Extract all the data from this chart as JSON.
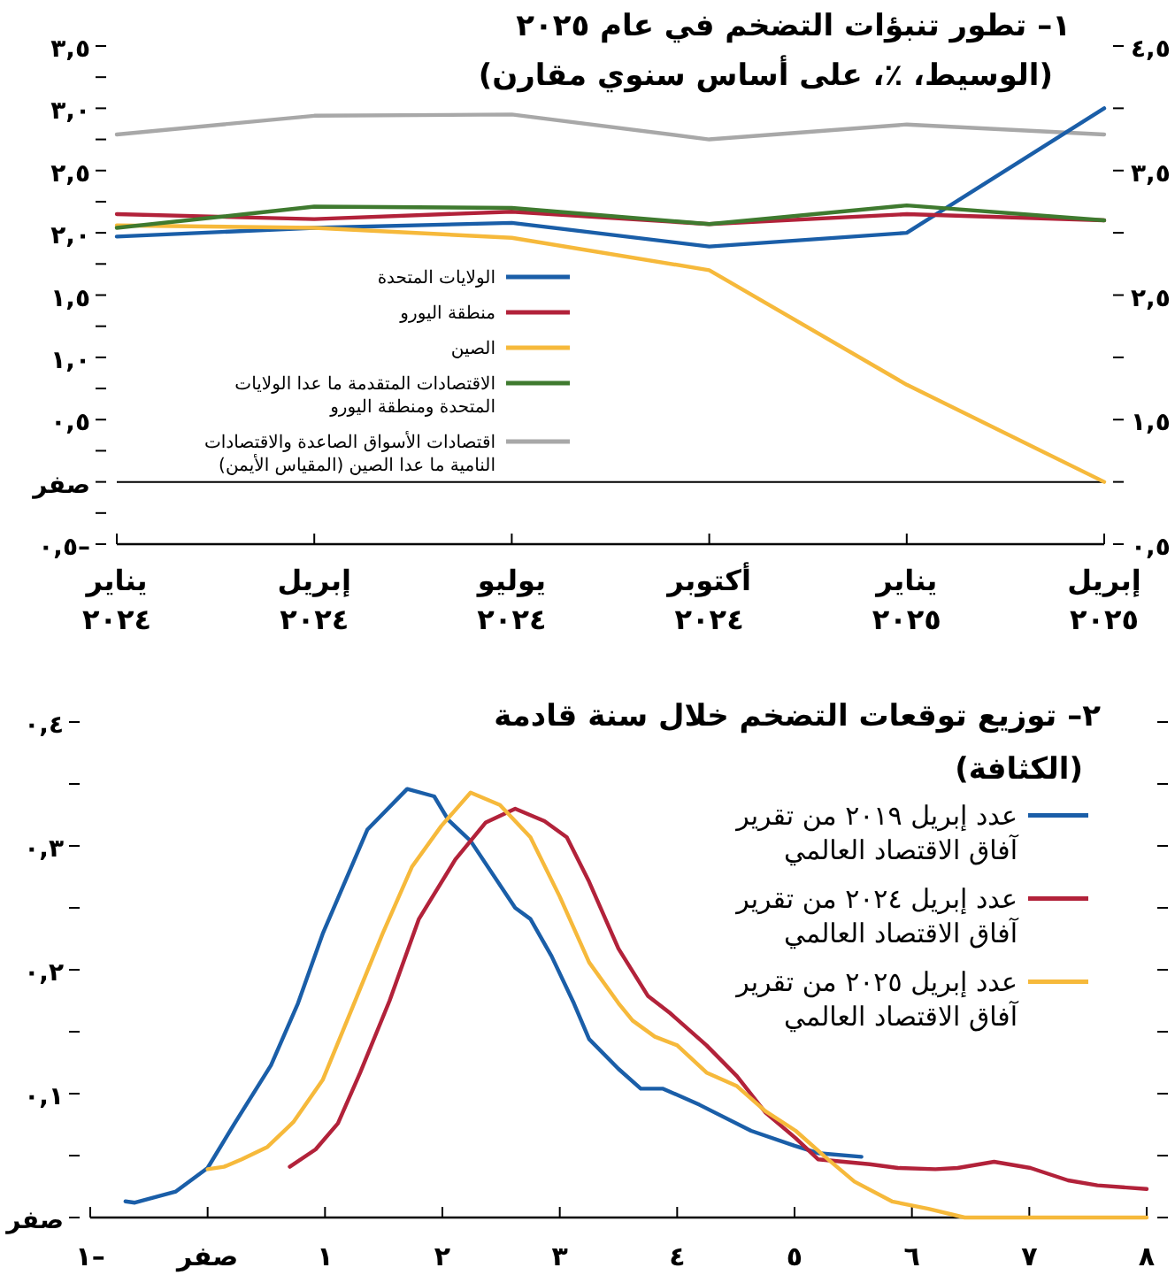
{
  "chart_data": [
    {
      "type": "line",
      "title": "١– تطور تنبؤات التضخم في عام ٢٠٢٥",
      "subtitle": "(الوسيط، ٪، على أساس سنوي مقارن)",
      "categories": [
        "يناير\n٢٠٢٤",
        "إبريل\n٢٠٢٤",
        "يوليو\n٢٠٢٤",
        "أكتوبر\n٢٠٢٤",
        "يناير\n٢٠٢٥",
        "إبريل\n٢٠٢٥"
      ],
      "series": [
        {
          "name": "الولايات المتحدة",
          "color": "#1a5ea8",
          "values": [
            1.97,
            2.04,
            2.08,
            1.89,
            2.0,
            3.0
          ]
        },
        {
          "name": "منطقة اليورو",
          "color": "#b2223a",
          "values": [
            2.15,
            2.11,
            2.17,
            2.07,
            2.15,
            2.1
          ]
        },
        {
          "name": "الصين",
          "color": "#f6b93b",
          "values": [
            2.06,
            2.04,
            1.96,
            1.7,
            0.78,
            0.0
          ]
        },
        {
          "name": "الاقتصادات المتقدمة ما عدا الولايات المتحدة ومنطقة اليورو",
          "color": "#3f7a2f",
          "values": [
            2.04,
            2.21,
            2.2,
            2.07,
            2.22,
            2.1
          ]
        },
        {
          "name": "اقتصادات الأسواق الصاعدة والاقتصادات النامية ما عدا الصين (المقياس الأيمن)",
          "color": "#a8a8a8",
          "axis": "y2",
          "values": [
            3.79,
            3.94,
            3.95,
            3.75,
            3.87,
            3.79
          ]
        }
      ],
      "ylim": [
        -0.5,
        3.5
      ],
      "yticks": [
        {
          "value": -0.5,
          "label": "٠,٥–"
        },
        {
          "value": -0.25,
          "label": null
        },
        {
          "value": 0,
          "label": "صفر"
        },
        {
          "value": 0.25,
          "label": null
        },
        {
          "value": 0.5,
          "label": "٠,٥"
        },
        {
          "value": 0.75,
          "label": null
        },
        {
          "value": 1.0,
          "label": "١,٠"
        },
        {
          "value": 1.25,
          "label": null
        },
        {
          "value": 1.5,
          "label": "١,٥"
        },
        {
          "value": 1.75,
          "label": null
        },
        {
          "value": 2.0,
          "label": "٢,٠"
        },
        {
          "value": 2.25,
          "label": null
        },
        {
          "value": 2.5,
          "label": "٢,٥"
        },
        {
          "value": 2.75,
          "label": null
        },
        {
          "value": 3.0,
          "label": "٣,٠"
        },
        {
          "value": 3.25,
          "label": null
        },
        {
          "value": 3.5,
          "label": "٣,٥"
        }
      ],
      "y2lim": [
        0.5,
        4.5
      ],
      "y2ticks": [
        {
          "value": 0.5,
          "label": "٠,٥"
        },
        {
          "value": 1.0,
          "label": null
        },
        {
          "value": 1.5,
          "label": "١,٥"
        },
        {
          "value": 2.0,
          "label": null
        },
        {
          "value": 2.5,
          "label": "٢,٥"
        },
        {
          "value": 3.0,
          "label": null
        },
        {
          "value": 3.5,
          "label": "٣,٥"
        },
        {
          "value": 4.0,
          "label": null
        },
        {
          "value": 4.5,
          "label": "٤,٥"
        }
      ],
      "ref_lines": [
        {
          "axis": "y",
          "value": 0,
          "color": "#000000"
        }
      ],
      "legend": "left"
    },
    {
      "type": "line",
      "title": "٢– توزيع توقعات التضخم خلال سنة قادمة",
      "subtitle": "(الكثافة)",
      "series": [
        {
          "name": "عدد إبريل ٢٠١٩ من تقرير آفاق الاقتصاد العالمي",
          "color": "#1a5ea8",
          "x": [
            -0.7,
            -0.62,
            -0.27,
            0,
            0.23,
            0.54,
            0.77,
            0.98,
            1.36,
            1.7,
            1.93,
            2.05,
            2.24,
            2.62,
            2.75,
            2.93,
            3.12,
            3.25,
            3.5,
            3.69,
            3.88,
            4.19,
            4.63,
            5.0,
            5.2,
            5.57
          ],
          "values": [
            0.013,
            0.012,
            0.021,
            0.04,
            0.076,
            0.123,
            0.173,
            0.229,
            0.313,
            0.346,
            0.34,
            0.321,
            0.304,
            0.25,
            0.241,
            0.211,
            0.173,
            0.144,
            0.12,
            0.104,
            0.104,
            0.091,
            0.07,
            0.058,
            0.052,
            0.049
          ]
        },
        {
          "name": "عدد إبريل ٢٠٢٤ من تقرير آفاق الاقتصاد العالمي",
          "color": "#b2223a",
          "x": [
            0.7,
            0.92,
            1.11,
            1.3,
            1.55,
            1.8,
            2.11,
            2.37,
            2.62,
            2.87,
            3.06,
            3.25,
            3.5,
            3.75,
            3.94,
            4.25,
            4.51,
            4.75,
            5.01,
            5.2,
            5.64,
            5.88,
            6.2,
            6.39,
            6.7,
            7.01,
            7.33,
            7.58,
            8.0
          ],
          "values": [
            0.041,
            0.055,
            0.076,
            0.117,
            0.175,
            0.241,
            0.289,
            0.319,
            0.33,
            0.32,
            0.307,
            0.271,
            0.217,
            0.179,
            0.165,
            0.139,
            0.114,
            0.085,
            0.064,
            0.047,
            0.043,
            0.04,
            0.039,
            0.04,
            0.045,
            0.04,
            0.03,
            0.026,
            0.023
          ]
        },
        {
          "name": "عدد إبريل ٢٠٢٥ من تقرير آفاق الاقتصاد العالمي",
          "color": "#f6b93b",
          "x": [
            0,
            0.14,
            0.29,
            0.51,
            0.73,
            0.98,
            1.27,
            1.49,
            1.74,
            1.99,
            2.24,
            2.49,
            2.75,
            3.0,
            3.25,
            3.5,
            3.62,
            3.81,
            4.0,
            4.25,
            4.51,
            4.75,
            5.01,
            5.26,
            5.51,
            5.83,
            6.14,
            6.45,
            8.0
          ],
          "values": [
            0.039,
            0.041,
            0.047,
            0.057,
            0.077,
            0.111,
            0.178,
            0.229,
            0.283,
            0.316,
            0.343,
            0.333,
            0.307,
            0.259,
            0.206,
            0.173,
            0.159,
            0.146,
            0.139,
            0.117,
            0.106,
            0.086,
            0.07,
            0.049,
            0.029,
            0.013,
            0.007,
            0,
            0
          ]
        }
      ],
      "xlim": [
        -1,
        8
      ],
      "xticks": [
        {
          "value": -1,
          "label": "١–"
        },
        {
          "value": 0,
          "label": "صفر"
        },
        {
          "value": 1,
          "label": "١"
        },
        {
          "value": 2,
          "label": "٢"
        },
        {
          "value": 3,
          "label": "٣"
        },
        {
          "value": 4,
          "label": "٤"
        },
        {
          "value": 5,
          "label": "٥"
        },
        {
          "value": 6,
          "label": "٦"
        },
        {
          "value": 7,
          "label": "٧"
        },
        {
          "value": 8,
          "label": "٨"
        }
      ],
      "ylim": [
        0,
        0.4
      ],
      "yticks": [
        {
          "value": 0,
          "label": "صفر"
        },
        {
          "value": 0.05,
          "label": null
        },
        {
          "value": 0.1,
          "label": "٠,١"
        },
        {
          "value": 0.15,
          "label": null
        },
        {
          "value": 0.2,
          "label": "٠,٢"
        },
        {
          "value": 0.25,
          "label": null
        },
        {
          "value": 0.3,
          "label": "٠,٣"
        },
        {
          "value": 0.35,
          "label": null
        },
        {
          "value": 0.4,
          "label": "٠,٤"
        }
      ],
      "legend": "top right"
    }
  ]
}
